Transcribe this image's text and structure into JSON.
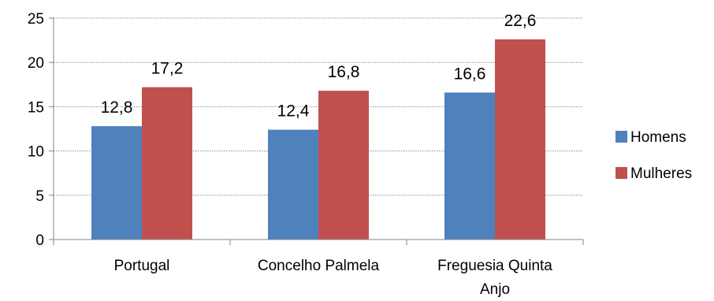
{
  "chart_data": {
    "type": "bar",
    "categories": [
      [
        "Portugal"
      ],
      [
        "Concelho Palmela"
      ],
      [
        "Freguesia Quinta",
        "Anjo"
      ]
    ],
    "series": [
      {
        "name": "Homens",
        "values": [
          12.8,
          12.4,
          16.6
        ],
        "labels": [
          "12,8",
          "12,4",
          "16,6"
        ],
        "color": "#4F81BD"
      },
      {
        "name": "Mulheres",
        "values": [
          17.2,
          16.8,
          22.6
        ],
        "labels": [
          "17,2",
          "16,8",
          "22,6"
        ],
        "color": "#C0504D"
      }
    ],
    "ylim": [
      0,
      25
    ],
    "yticks": [
      "0",
      "5",
      "10",
      "15",
      "20",
      "25"
    ],
    "grid": true,
    "legend": "right"
  }
}
